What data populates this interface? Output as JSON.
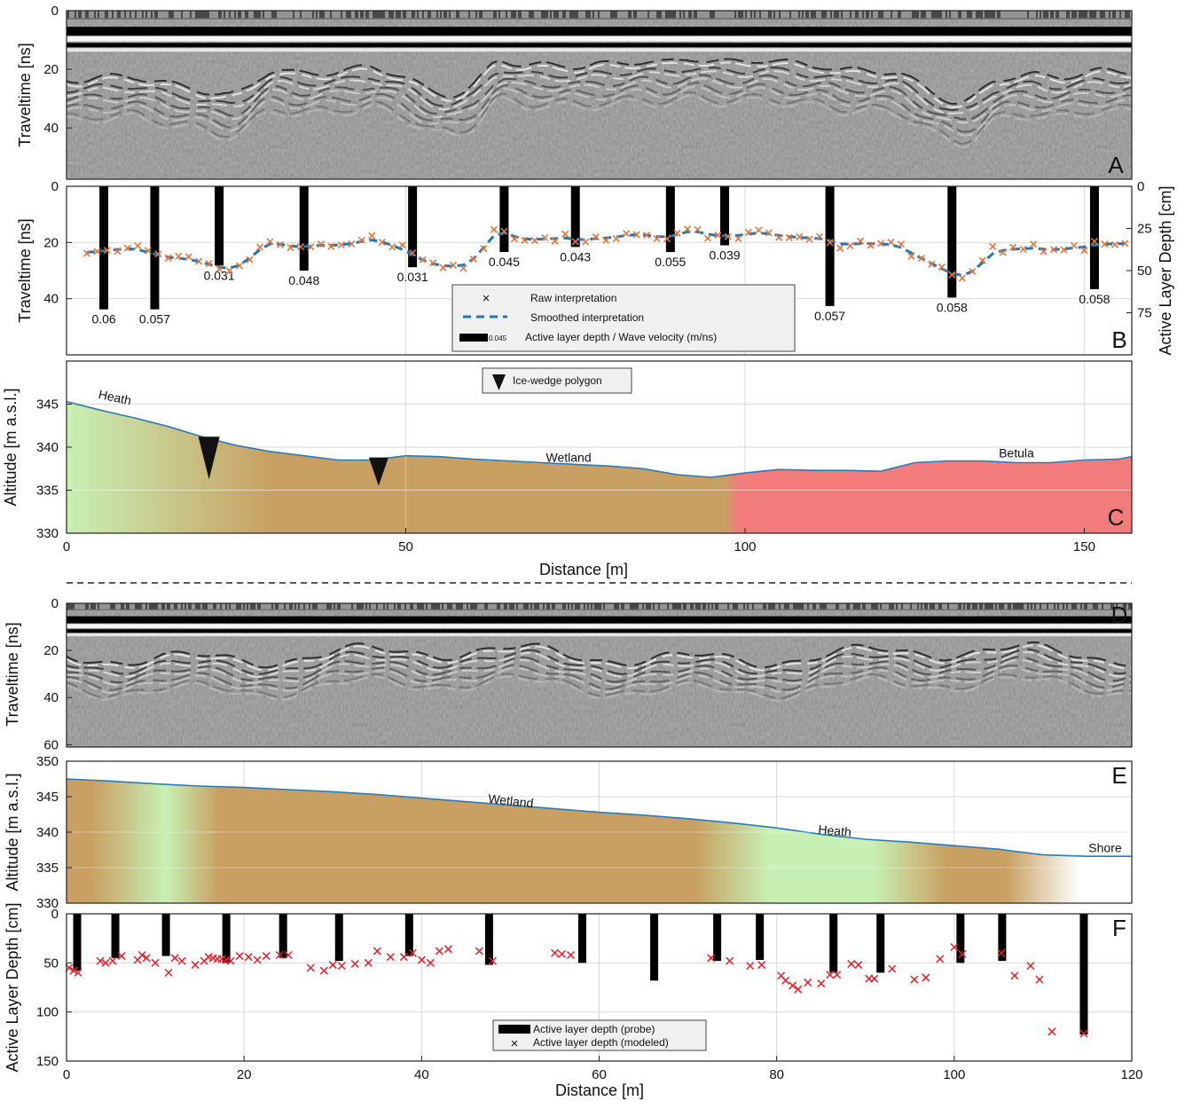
{
  "colors": {
    "radar_bg": "#8e8e8e",
    "raw_marker": "#e8743b",
    "smooth_line": "#1f77b4",
    "bar": "#000000",
    "heath": "#c8f0b4",
    "wetland": "#c8a063",
    "betula": "#f27b7b",
    "surface_line": "#2b7bb9",
    "modeled_marker": "#e8202a"
  },
  "panels": {
    "A": {
      "letter": "A",
      "ylabel": "Traveltime [ns]",
      "yticks": [
        "0",
        "20",
        "40"
      ]
    },
    "B": {
      "letter": "B",
      "ylabel": "Traveltime [ns]",
      "ylabel_right": "Active Layer Depth [cm]",
      "yticks": [
        "0",
        "20",
        "40"
      ],
      "yticks_right": [
        "0",
        "25",
        "50",
        "75"
      ]
    },
    "C": {
      "letter": "C",
      "ylabel": "Altitude [m a.s.l.]",
      "xlabel": "Distance [m]",
      "yticks": [
        "330",
        "335",
        "340",
        "345"
      ],
      "xticks": [
        "0",
        "50",
        "100",
        "150"
      ]
    },
    "D": {
      "letter": "D",
      "ylabel": "Traveltime [ns]",
      "yticks": [
        "0",
        "20",
        "40",
        "60"
      ]
    },
    "E": {
      "letter": "E",
      "ylabel": "Altitude [m a.s.l.]",
      "yticks": [
        "330",
        "335",
        "340",
        "345",
        "350"
      ]
    },
    "F": {
      "letter": "F",
      "ylabel": "Active Layer Depth [cm]",
      "xlabel": "Distance [m]",
      "yticks": [
        "0",
        "50",
        "100",
        "150"
      ],
      "xticks": [
        "0",
        "20",
        "40",
        "60",
        "80",
        "100",
        "120"
      ]
    }
  },
  "legend_b": {
    "raw": "Raw interpretation",
    "smoothed": "Smoothed interpretation",
    "bar_example": "0.045",
    "bars": "Active layer depth / Wave velocity (m/ns)"
  },
  "legend_c": {
    "wedge": "Ice-wedge polygon"
  },
  "legend_f": {
    "probe": "Active layer depth (probe)",
    "modeled": "Active layer depth (modeled)"
  },
  "surface_labels_c": [
    {
      "text": "Heath",
      "x": 7,
      "y": 345.3,
      "rotate": 12
    },
    {
      "text": "Wetland",
      "x": 74,
      "y": 338.3,
      "rotate": 0
    },
    {
      "text": "Betula",
      "x": 140,
      "y": 338.8,
      "rotate": 0
    }
  ],
  "surface_labels_e": [
    {
      "text": "Wetland",
      "x": 50,
      "y": 343.8,
      "rotate": 6
    },
    {
      "text": "Heath",
      "x": 86.5,
      "y": 339.6,
      "rotate": 5
    },
    {
      "text": "Shore",
      "x": 117,
      "y": 337.2,
      "rotate": 0
    }
  ],
  "chart_data": [
    {
      "panel": "B",
      "type": "line",
      "xlim": [
        0,
        157
      ],
      "ylim": [
        0,
        60
      ],
      "y2lim": [
        0,
        100
      ],
      "bars": [
        {
          "x": 5.5,
          "depth": 73,
          "velocity": "0.06"
        },
        {
          "x": 13,
          "depth": 73,
          "velocity": "0.057"
        },
        {
          "x": 22.5,
          "depth": 47,
          "velocity": "0.031"
        },
        {
          "x": 35,
          "depth": 50,
          "velocity": "0.048"
        },
        {
          "x": 51,
          "depth": 48,
          "velocity": "0.031"
        },
        {
          "x": 64.5,
          "depth": 39,
          "velocity": "0.045"
        },
        {
          "x": 75,
          "depth": 36,
          "velocity": "0.043"
        },
        {
          "x": 89,
          "depth": 39,
          "velocity": "0.055"
        },
        {
          "x": 97,
          "depth": 35,
          "velocity": "0.039"
        },
        {
          "x": 112.5,
          "depth": 71,
          "velocity": "0.057"
        },
        {
          "x": 130.5,
          "depth": 66,
          "velocity": "0.058"
        },
        {
          "x": 151.5,
          "depth": 61,
          "velocity": "0.058"
        }
      ],
      "raw_x": [
        3,
        4.5,
        6,
        7.5,
        9,
        10.5,
        12,
        13.5,
        15,
        16.5,
        18,
        19.5,
        21,
        22.5,
        24,
        25.5,
        27,
        28.5,
        30,
        31.5,
        33,
        34.5,
        36,
        37.5,
        39,
        40.5,
        42,
        43.5,
        45,
        46.5,
        48,
        49.5,
        51,
        52.5,
        54,
        55.5,
        57,
        58.5,
        60,
        61.5,
        63,
        64.5,
        66,
        67.5,
        69,
        70.5,
        72,
        73.5,
        75,
        76.5,
        78,
        79.5,
        81,
        82.5,
        84,
        85.5,
        87,
        88.5,
        90,
        91.5,
        93,
        94.5,
        96,
        97.5,
        99,
        100.5,
        102,
        103.5,
        105,
        106.5,
        108,
        109.5,
        111,
        112.5,
        114,
        115.5,
        117,
        118.5,
        120,
        121.5,
        123,
        124.5,
        126,
        127.5,
        129,
        130.5,
        132,
        133.5,
        135,
        136.5,
        138,
        139.5,
        141,
        142.5,
        144,
        145.5,
        147,
        148.5,
        150,
        151.5,
        153,
        154.5,
        156
      ],
      "raw_y": [
        23.9,
        23.2,
        22.8,
        23.1,
        22.0,
        21.2,
        22.9,
        24.1,
        25.5,
        24.9,
        25.1,
        26.7,
        27.5,
        29.4,
        30.1,
        28.3,
        26.1,
        21.7,
        19.7,
        20.8,
        21.8,
        21.5,
        21.6,
        20.6,
        21.4,
        20.9,
        20.5,
        19.2,
        17.6,
        19.9,
        21.6,
        20.9,
        23.7,
        26.1,
        27.3,
        29.0,
        28.1,
        29.2,
        25.9,
        22.2,
        15.4,
        16.0,
        18.7,
        19.2,
        19.3,
        18.3,
        19.5,
        17.0,
        19.7,
        19.8,
        18.0,
        19.2,
        18.6,
        16.8,
        17.2,
        17.4,
        18.6,
        18.7,
        16.7,
        15.2,
        15.4,
        18.5,
        17.4,
        17.9,
        18.6,
        16.4,
        15.6,
        16.6,
        18.2,
        18.3,
        18.0,
        18.8,
        17.9,
        20.0,
        22.0,
        21.2,
        19.5,
        21.0,
        20.3,
        19.9,
        20.6,
        24.9,
        25.6,
        27.7,
        28.7,
        31.5,
        32.7,
        30.3,
        26.4,
        21.4,
        23.6,
        21.7,
        22.4,
        20.6,
        23.2,
        22.5,
        22.6,
        21.1,
        22.8,
        19.6,
        20.6,
        20.8,
        20.3
      ],
      "smooth_y": [
        23.5,
        23.2,
        22.8,
        22.5,
        22.2,
        22.5,
        23.5,
        24.4,
        25.2,
        25.6,
        26.0,
        26.8,
        27.8,
        28.8,
        29.2,
        28.0,
        25.5,
        22.5,
        20.5,
        20.6,
        21.3,
        21.5,
        21.3,
        21.0,
        21.0,
        20.8,
        20.4,
        19.6,
        19.1,
        19.8,
        21.0,
        22.5,
        24.3,
        26.2,
        27.6,
        28.2,
        28.5,
        28.0,
        25.8,
        21.8,
        17.5,
        16.6,
        17.8,
        18.7,
        18.9,
        18.7,
        18.6,
        18.4,
        18.8,
        19.0,
        18.6,
        18.4,
        18.0,
        17.5,
        17.2,
        17.4,
        17.9,
        17.9,
        17.2,
        16.2,
        16.2,
        17.0,
        17.6,
        17.7,
        17.5,
        17.0,
        16.6,
        16.9,
        17.5,
        17.9,
        18.2,
        18.4,
        18.6,
        19.4,
        20.5,
        20.6,
        20.4,
        20.4,
        20.5,
        20.8,
        21.8,
        23.7,
        25.6,
        27.5,
        29.3,
        31.0,
        31.7,
        30.3,
        27.2,
        24.0,
        22.8,
        22.4,
        22.2,
        22.0,
        22.4,
        22.5,
        22.3,
        21.9,
        21.6,
        20.9,
        20.6,
        20.5,
        20.4
      ]
    },
    {
      "panel": "C",
      "type": "area",
      "xlim": [
        0,
        157
      ],
      "ylim": [
        330,
        350
      ],
      "x": [
        0,
        5,
        10,
        15,
        20,
        25,
        30,
        35,
        40,
        45,
        50,
        55,
        60,
        65,
        70,
        75,
        80,
        85,
        90,
        95,
        100,
        105,
        110,
        115,
        120,
        125,
        130,
        135,
        140,
        145,
        150,
        155,
        157
      ],
      "altitude": [
        345.3,
        344.3,
        343.4,
        342.4,
        341.2,
        340.2,
        339.5,
        339.0,
        338.5,
        338.5,
        339.0,
        338.9,
        338.6,
        338.4,
        338.2,
        338.0,
        337.8,
        337.5,
        336.8,
        336.5,
        337.0,
        337.4,
        337.3,
        337.3,
        337.2,
        338.2,
        338.4,
        338.4,
        338.2,
        338.2,
        338.5,
        338.6,
        338.9
      ],
      "zones": [
        {
          "name": "Heath",
          "from": 0,
          "to": 30
        },
        {
          "name": "Wetland",
          "from": 30,
          "to": 98
        },
        {
          "name": "Betula",
          "from": 98,
          "to": 157
        }
      ],
      "ice_wedges": [
        21,
        46
      ]
    },
    {
      "panel": "E",
      "type": "area",
      "xlim": [
        0,
        120
      ],
      "ylim": [
        330,
        350
      ],
      "x": [
        0,
        5,
        10,
        15,
        20,
        25,
        30,
        35,
        40,
        45,
        50,
        55,
        60,
        65,
        70,
        75,
        80,
        85,
        90,
        95,
        100,
        105,
        110,
        115,
        120
      ],
      "altitude": [
        347.5,
        347.2,
        346.8,
        346.5,
        346.3,
        346.0,
        345.7,
        345.3,
        344.8,
        344.3,
        343.8,
        343.3,
        342.8,
        342.4,
        341.9,
        341.3,
        340.6,
        339.7,
        339.0,
        338.6,
        338.1,
        337.6,
        336.8,
        336.6,
        336.6
      ],
      "zones": [
        {
          "name": "Wetland",
          "from": 0,
          "to": 7
        },
        {
          "name": "Heath",
          "from": 7,
          "to": 13
        },
        {
          "name": "Wetland",
          "from": 13,
          "to": 75
        },
        {
          "name": "Heath",
          "from": 75,
          "to": 95
        },
        {
          "name": "Wetland",
          "from": 95,
          "to": 110
        },
        {
          "name": "Shore",
          "from": 110,
          "to": 120
        }
      ]
    },
    {
      "panel": "F",
      "type": "scatter",
      "xlim": [
        0,
        120
      ],
      "ylim": [
        0,
        150
      ],
      "probe_x": [
        1.2,
        5.5,
        11.2,
        18,
        24.4,
        30.7,
        38.6,
        47.6,
        58.1,
        66.2,
        73.3,
        78.1,
        86.4,
        91.7,
        100.7,
        105.4,
        114.6
      ],
      "probe_depth": [
        58,
        45,
        43,
        50,
        45,
        48,
        43,
        52,
        50,
        68,
        48,
        47,
        60,
        60,
        50,
        48,
        123
      ],
      "modeled_x": [
        0.3,
        0.8,
        1.3,
        3.8,
        4.4,
        5.2,
        6.2,
        8.0,
        8.5,
        9.0,
        10.0,
        11.5,
        12.2,
        13.0,
        14.5,
        15.5,
        16.0,
        16.5,
        17.0,
        17.5,
        18.0,
        18.5,
        19.5,
        20.5,
        21.5,
        22.5,
        24.0,
        25.0,
        27.5,
        29.0,
        30.0,
        31.0,
        32.5,
        34.0,
        35.0,
        36.5,
        38.0,
        39.0,
        40.0,
        41.0,
        42.0,
        43.0,
        46.5,
        48.0,
        55.0,
        55.8,
        56.8,
        72.6,
        74.7,
        77.0,
        78.3,
        80.5,
        81.0,
        81.8,
        82.4,
        83.5,
        85.0,
        86.0,
        86.8,
        88.4,
        89.2,
        90.4,
        91.0,
        93.0,
        95.5,
        96.8,
        98.4,
        100.0,
        100.9,
        105.3,
        106.8,
        108.6,
        109.6,
        111.0,
        114.6
      ],
      "modeled_depth": [
        55,
        58,
        60,
        48,
        50,
        48,
        43,
        47,
        42,
        45,
        50,
        60,
        45,
        48,
        52,
        48,
        44,
        45,
        46,
        46,
        47,
        48,
        43,
        44,
        47,
        43,
        42,
        42,
        55,
        58,
        52,
        53,
        51,
        50,
        38,
        44,
        44,
        40,
        47,
        50,
        38,
        36,
        38,
        48,
        40,
        41,
        42,
        45,
        48,
        53,
        52,
        63,
        68,
        73,
        77,
        70,
        71,
        62,
        62,
        51,
        52,
        66,
        66,
        56,
        67,
        65,
        46,
        34,
        41,
        40,
        63,
        53,
        67,
        120,
        122
      ]
    }
  ]
}
